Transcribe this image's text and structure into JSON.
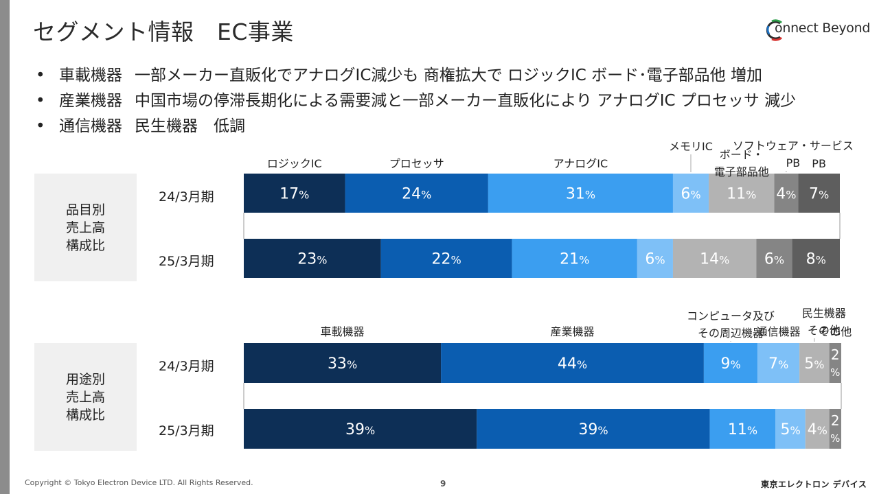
{
  "page": {
    "title": "セグメント情報　EC事業",
    "logo_text": "onnect Beyond",
    "page_number": "9",
    "copyright": "Copyright © Tokyo Electron Device LTD. All Rights Reserved.",
    "brand": "東京エレクトロン デバイス",
    "accent_colors": [
      "#0d2f56",
      "#0b5db0",
      "#3b9ef0",
      "#7ec0f7",
      "#b3b3b3",
      "#858585",
      "#5e5e5e"
    ]
  },
  "bullets": [
    {
      "marker": "•",
      "category": "車載機器",
      "text": "一部メーカー直販化でアナログIC減少も 商権拡大で ロジックIC ボード･電子部品他 増加"
    },
    {
      "marker": "•",
      "category": "産業機器",
      "text": "中国市場の停滞長期化による需要減と一部メーカー直販化により アナログIC プロセッサ 減少"
    },
    {
      "marker": "•",
      "category": "通信機器",
      "text": "民生機器　低調"
    }
  ],
  "chart_data": [
    {
      "type": "bar",
      "stacked": true,
      "orientation": "horizontal",
      "section_label": [
        "品目別",
        "売上高",
        "構成比"
      ],
      "categories": [
        "24/3月期",
        "25/3月期"
      ],
      "unit": "%",
      "series": [
        {
          "name": "ロジックIC",
          "color": "#0d2f56",
          "values": [
            17,
            23
          ]
        },
        {
          "name": "プロセッサ",
          "color": "#0b5db0",
          "values": [
            24,
            22
          ]
        },
        {
          "name": "アナログIC",
          "color": "#3b9ef0",
          "values": [
            31,
            21
          ]
        },
        {
          "name": "メモリIC",
          "color": "#7ec0f7",
          "values": [
            6,
            6
          ]
        },
        {
          "name": "ボード・電子部品他",
          "color": "#b3b3b3",
          "values": [
            11,
            14
          ]
        },
        {
          "name": "ソフトウェア・サービス",
          "color": "#858585",
          "values": [
            4,
            6
          ]
        },
        {
          "name": "PB",
          "color": "#5e5e5e",
          "values": [
            7,
            8
          ]
        }
      ]
    },
    {
      "type": "bar",
      "stacked": true,
      "orientation": "horizontal",
      "section_label": [
        "用途別",
        "売上高",
        "構成比"
      ],
      "categories": [
        "24/3月期",
        "25/3月期"
      ],
      "unit": "%",
      "series": [
        {
          "name": "車載機器",
          "color": "#0d2f56",
          "values": [
            33,
            39
          ]
        },
        {
          "name": "産業機器",
          "color": "#0b5db0",
          "values": [
            44,
            39
          ]
        },
        {
          "name": "コンピュータ及びその周辺機器",
          "color": "#3b9ef0",
          "values": [
            9,
            11
          ]
        },
        {
          "name": "通信機器",
          "color": "#7ec0f7",
          "values": [
            7,
            5
          ]
        },
        {
          "name": "民生機器",
          "color": "#b3b3b3",
          "values": [
            5,
            4
          ]
        },
        {
          "name": "その他",
          "color": "#858585",
          "values": [
            2,
            2
          ]
        }
      ]
    }
  ]
}
